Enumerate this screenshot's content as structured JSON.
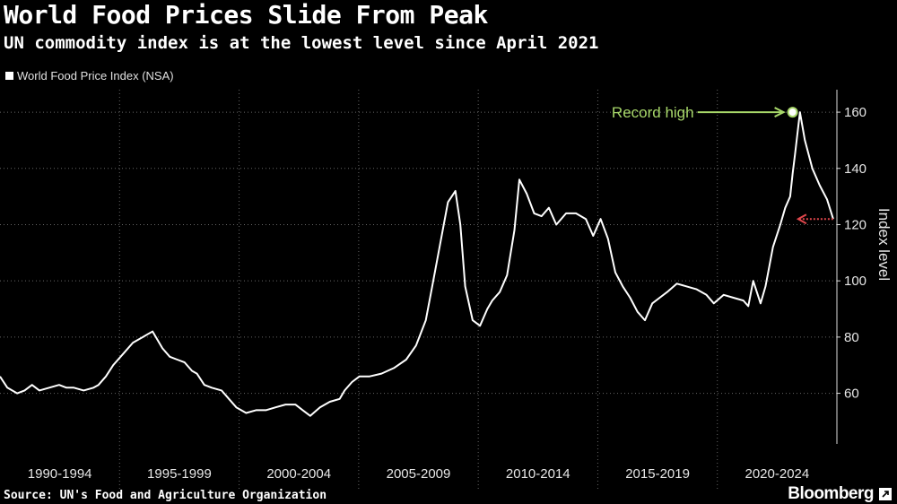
{
  "chart_data": {
    "type": "line",
    "title": "World Food Prices Slide From Peak",
    "subtitle": "UN commodity index is at the lowest level since April 2021",
    "legend": "World Food Price Index (NSA)",
    "ylabel": "Index level",
    "ylim": [
      42,
      168
    ],
    "yticks": [
      60,
      80,
      100,
      120,
      140,
      160
    ],
    "xlim": [
      1990.0,
      2024.0
    ],
    "x_categories": [
      "1990-1994",
      "1995-1999",
      "2000-2004",
      "2005-2009",
      "2010-2014",
      "2015-2019",
      "2020-2024"
    ],
    "grid": true,
    "series": [
      {
        "name": "World Food Price Index (NSA)",
        "color": "#ffffff",
        "x": [
          1990.0,
          1990.3,
          1990.7,
          1991.0,
          1991.3,
          1991.6,
          1992.0,
          1992.4,
          1992.7,
          1993.0,
          1993.4,
          1993.8,
          1994.0,
          1994.3,
          1994.6,
          1995.0,
          1995.4,
          1995.8,
          1996.0,
          1996.2,
          1996.4,
          1996.6,
          1996.9,
          1997.2,
          1997.5,
          1997.8,
          1998.0,
          1998.3,
          1998.6,
          1999.0,
          1999.3,
          1999.6,
          2000.0,
          2000.4,
          2000.8,
          2001.2,
          2001.6,
          2002.0,
          2002.3,
          2002.6,
          2003.0,
          2003.4,
          2003.8,
          2004.0,
          2004.3,
          2004.6,
          2005.0,
          2005.5,
          2006.0,
          2006.5,
          2006.9,
          2007.3,
          2007.6,
          2007.9,
          2008.2,
          2008.5,
          2008.7,
          2008.9,
          2009.2,
          2009.5,
          2009.8,
          2010.0,
          2010.3,
          2010.6,
          2010.9,
          2011.1,
          2011.4,
          2011.7,
          2012.0,
          2012.3,
          2012.6,
          2013.0,
          2013.4,
          2013.8,
          2014.1,
          2014.4,
          2014.7,
          2015.0,
          2015.3,
          2015.6,
          2015.9,
          2016.2,
          2016.5,
          2016.8,
          2017.1,
          2017.5,
          2017.9,
          2018.3,
          2018.7,
          2019.0,
          2019.4,
          2019.8,
          2020.2,
          2020.4,
          2020.6,
          2020.9,
          2021.1,
          2021.4,
          2021.7,
          2021.9,
          2022.1,
          2022.2,
          2022.3,
          2022.5,
          2022.7,
          2023.0,
          2023.3,
          2023.6,
          2023.85
        ],
        "values": [
          66,
          62,
          60,
          61,
          63,
          61,
          62,
          63,
          62,
          62,
          61,
          62,
          63,
          66,
          70,
          74,
          78,
          80,
          81,
          82,
          79,
          76,
          73,
          72,
          71,
          68,
          67,
          63,
          62,
          61,
          58,
          55,
          53,
          54,
          54,
          55,
          56,
          56,
          54,
          52,
          55,
          57,
          58,
          61,
          64,
          66,
          66,
          67,
          69,
          72,
          77,
          86,
          100,
          114,
          128,
          132,
          120,
          98,
          86,
          84,
          90,
          93,
          96,
          102,
          118,
          136,
          131,
          124,
          123,
          126,
          120,
          124,
          124,
          122,
          116,
          122,
          115,
          103,
          98,
          94,
          89,
          86,
          92,
          94,
          96,
          99,
          98,
          97,
          95,
          92,
          95,
          94,
          93,
          91,
          100,
          92,
          98,
          112,
          120,
          126,
          130,
          138,
          145,
          160,
          150,
          140,
          134,
          129,
          122
        ]
      }
    ],
    "annotations": [
      {
        "text": "Record high",
        "x": 2022.2,
        "y": 160,
        "color": "#a8d86a"
      },
      {
        "text": "",
        "x": 2023.85,
        "y": 122,
        "color": "#e0474c"
      }
    ]
  },
  "footer": {
    "source": "Source: UN's Food and Agriculture Organization",
    "brand": "Bloomberg"
  }
}
